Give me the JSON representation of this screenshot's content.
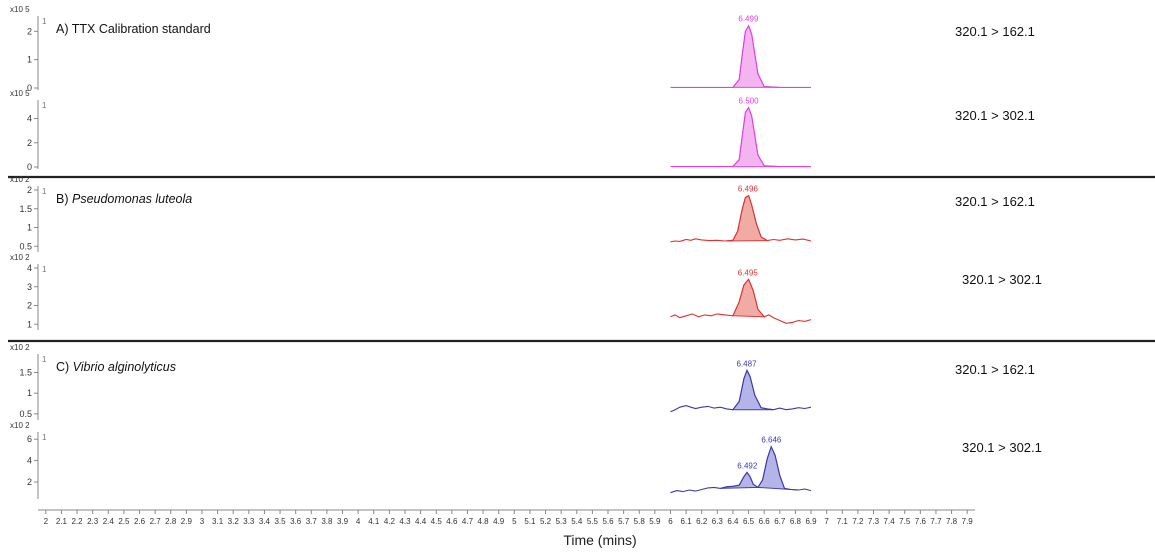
{
  "chart_data": {
    "type": "line",
    "xlabel": "Time (mins)",
    "x_ticks": [
      "2",
      "2.1",
      "2.2",
      "2.3",
      "2.4",
      "2.5",
      "2.6",
      "2.7",
      "2.8",
      "2.9",
      "3",
      "3.1",
      "3.2",
      "3.3",
      "3.4",
      "3.5",
      "3.6",
      "3.7",
      "3.8",
      "3.9",
      "4",
      "4.1",
      "4.2",
      "4.3",
      "4.4",
      "4.5",
      "4.6",
      "4.7",
      "4.8",
      "4.9",
      "5",
      "5.1",
      "5.2",
      "5.3",
      "5.4",
      "5.5",
      "5.6",
      "5.7",
      "5.8",
      "5.9",
      "6",
      "6.1",
      "6.2",
      "6.3",
      "6.4",
      "6.5",
      "6.6",
      "6.7",
      "6.8",
      "6.9",
      "7",
      "7.1",
      "7.2",
      "7.3",
      "7.4",
      "7.5",
      "7.6",
      "7.7",
      "7.8",
      "7.9"
    ],
    "xlim": [
      1.95,
      7.95
    ],
    "groups": [
      {
        "label_prefix": "A) ",
        "label_name": "TTX Calibration standard",
        "italic": false,
        "color": "#e040e0",
        "fill": "#f4b0f0",
        "panels": [
          {
            "transition": "320.1 > 162.1",
            "scale_label": "x10 5",
            "trace_label": "1",
            "ylim": [
              0,
              2.4
            ],
            "yticks": [
              "2",
              "1",
              "0"
            ],
            "ytick_values": [
              2,
              1,
              0
            ],
            "peaks": [
              {
                "label": "6.499",
                "x": 6.499,
                "y": 2.2
              }
            ],
            "x": [
              6.0,
              6.1,
              6.2,
              6.3,
              6.4,
              6.44,
              6.46,
              6.48,
              6.5,
              6.52,
              6.54,
              6.56,
              6.6,
              6.7,
              6.8,
              6.9
            ],
            "y": [
              0.02,
              0.02,
              0.02,
              0.02,
              0.02,
              0.3,
              1.2,
              2.0,
              2.2,
              1.9,
              1.2,
              0.5,
              0.05,
              0.02,
              0.02,
              0.02
            ]
          },
          {
            "transition": "320.1 > 302.1",
            "scale_label": "x10 5",
            "trace_label": "1",
            "ylim": [
              0,
              5.2
            ],
            "yticks": [
              "4",
              "2",
              "0"
            ],
            "ytick_values": [
              4,
              2,
              0
            ],
            "peaks": [
              {
                "label": "6.500",
                "x": 6.5,
                "y": 4.9
              }
            ],
            "x": [
              6.0,
              6.1,
              6.2,
              6.3,
              6.4,
              6.44,
              6.46,
              6.48,
              6.5,
              6.52,
              6.54,
              6.56,
              6.6,
              6.7,
              6.8,
              6.9
            ],
            "y": [
              0.03,
              0.03,
              0.03,
              0.03,
              0.05,
              0.6,
              2.6,
              4.5,
              4.9,
              4.2,
              2.6,
              1.0,
              0.1,
              0.03,
              0.03,
              0.03
            ]
          }
        ]
      },
      {
        "label_prefix": "B) ",
        "label_name": "Pseudomonas luteola",
        "italic": true,
        "color": "#e03030",
        "fill": "#f0a8a0",
        "panels": [
          {
            "transition": "320.1 > 162.1",
            "scale_label": "x10 2",
            "trace_label": "1",
            "ylim": [
              0.4,
              2.0
            ],
            "yticks": [
              "2",
              "1.5",
              "1",
              "0.5"
            ],
            "ytick_values": [
              2,
              1.5,
              1,
              0.5
            ],
            "peaks": [
              {
                "label": "6.496",
                "x": 6.496,
                "y": 1.85
              }
            ],
            "x": [
              6.0,
              6.03,
              6.06,
              6.1,
              6.13,
              6.16,
              6.2,
              6.25,
              6.3,
              6.35,
              6.4,
              6.43,
              6.46,
              6.48,
              6.5,
              6.52,
              6.55,
              6.58,
              6.62,
              6.66,
              6.7,
              6.75,
              6.8,
              6.85,
              6.9
            ],
            "y": [
              0.62,
              0.64,
              0.63,
              0.68,
              0.66,
              0.7,
              0.67,
              0.65,
              0.66,
              0.64,
              0.66,
              0.9,
              1.5,
              1.8,
              1.85,
              1.6,
              1.1,
              0.75,
              0.65,
              0.68,
              0.66,
              0.7,
              0.67,
              0.69,
              0.64
            ]
          },
          {
            "transition": "320.1 > 302.1",
            "scale_label": "x10 2",
            "trace_label": "1",
            "ylim": [
              0.8,
              4.0
            ],
            "yticks": [
              "4",
              "3",
              "2",
              "1"
            ],
            "ytick_values": [
              4,
              3,
              2,
              1
            ],
            "peaks": [
              {
                "label": "6.495",
                "x": 6.495,
                "y": 3.4
              }
            ],
            "x": [
              6.0,
              6.03,
              6.06,
              6.1,
              6.14,
              6.18,
              6.22,
              6.26,
              6.3,
              6.35,
              6.4,
              6.44,
              6.47,
              6.5,
              6.53,
              6.56,
              6.6,
              6.63,
              6.66,
              6.7,
              6.74,
              6.78,
              6.82,
              6.86,
              6.9
            ],
            "y": [
              1.4,
              1.5,
              1.35,
              1.45,
              1.55,
              1.4,
              1.5,
              1.45,
              1.55,
              1.5,
              1.45,
              2.2,
              3.1,
              3.4,
              2.8,
              1.8,
              1.4,
              1.5,
              1.35,
              1.2,
              1.05,
              1.1,
              1.2,
              1.15,
              1.25
            ]
          }
        ]
      },
      {
        "label_prefix": "C) ",
        "label_name": "Vibrio alginolyticus",
        "italic": true,
        "color": "#3a3aa8",
        "fill": "#b0b0e8",
        "panels": [
          {
            "transition": "320.1 > 162.1",
            "scale_label": "x10 2",
            "trace_label": "1",
            "ylim": [
              0.4,
              1.85
            ],
            "yticks": [
              "1.5",
              "1",
              "0.5"
            ],
            "ytick_values": [
              1.5,
              1,
              0.5
            ],
            "peaks": [
              {
                "label": "6.487",
                "x": 6.487,
                "y": 1.55
              }
            ],
            "x": [
              6.0,
              6.03,
              6.06,
              6.1,
              6.13,
              6.16,
              6.2,
              6.24,
              6.28,
              6.32,
              6.36,
              6.4,
              6.44,
              6.47,
              6.49,
              6.51,
              6.54,
              6.58,
              6.62,
              6.66,
              6.7,
              6.74,
              6.78,
              6.82,
              6.86,
              6.9
            ],
            "y": [
              0.55,
              0.6,
              0.66,
              0.7,
              0.66,
              0.63,
              0.66,
              0.68,
              0.64,
              0.66,
              0.62,
              0.6,
              0.8,
              1.35,
              1.55,
              1.4,
              0.95,
              0.65,
              0.62,
              0.6,
              0.64,
              0.6,
              0.62,
              0.65,
              0.63,
              0.66
            ]
          },
          {
            "transition": "320.1 > 302.1",
            "scale_label": "x10 2",
            "trace_label": "1",
            "ylim": [
              0.6,
              6.3
            ],
            "yticks": [
              "6",
              "4",
              "2"
            ],
            "ytick_values": [
              6,
              4,
              2
            ],
            "peaks": [
              {
                "label": "6.492",
                "x": 6.492,
                "y": 2.9
              },
              {
                "label": "6.646",
                "x": 6.646,
                "y": 5.3
              }
            ],
            "x": [
              6.0,
              6.04,
              6.08,
              6.12,
              6.16,
              6.2,
              6.24,
              6.28,
              6.32,
              6.36,
              6.4,
              6.44,
              6.47,
              6.49,
              6.51,
              6.53,
              6.56,
              6.59,
              6.62,
              6.645,
              6.67,
              6.7,
              6.73,
              6.77,
              6.82,
              6.86,
              6.9
            ],
            "y": [
              1.0,
              1.2,
              1.1,
              1.25,
              1.15,
              1.3,
              1.45,
              1.5,
              1.4,
              1.55,
              1.6,
              1.7,
              2.5,
              2.9,
              2.5,
              1.8,
              1.5,
              2.2,
              4.2,
              5.3,
              4.5,
              2.6,
              1.4,
              1.3,
              1.25,
              1.35,
              1.2
            ]
          }
        ]
      }
    ]
  }
}
